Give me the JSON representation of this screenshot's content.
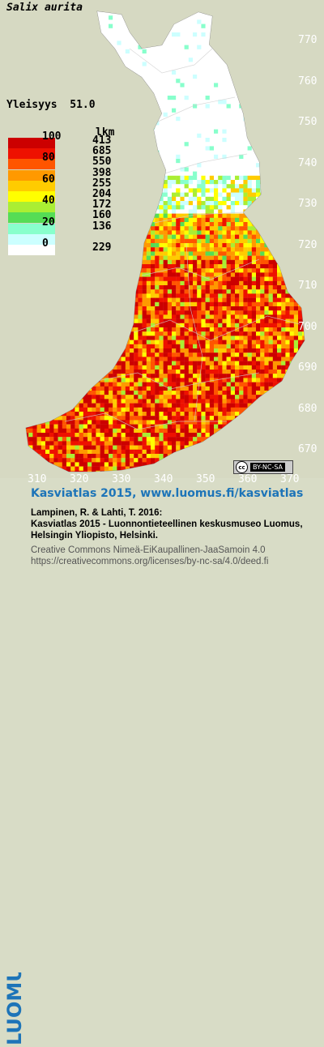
{
  "map": {
    "species": "Salix aurita",
    "frequency_label": "Yleisyys",
    "frequency_value": "51.0",
    "legend_header": "lkm",
    "legend": [
      {
        "label": "100",
        "count": "413",
        "color": "#cc0000"
      },
      {
        "label": "",
        "count": "685",
        "color": "#ee1100"
      },
      {
        "label": "80",
        "count": "550",
        "color": "#ff5500"
      },
      {
        "label": "",
        "count": "398",
        "color": "#ff9900"
      },
      {
        "label": "60",
        "count": "255",
        "color": "#ffcc00"
      },
      {
        "label": "",
        "count": "204",
        "color": "#ffff00"
      },
      {
        "label": "40",
        "count": "172",
        "color": "#aaee33"
      },
      {
        "label": "",
        "count": "160",
        "color": "#55dd55"
      },
      {
        "label": "20",
        "count": "136",
        "color": "#88ffcc"
      },
      {
        "label": "",
        "count": "",
        "color": "#ccffff"
      },
      {
        "label": "0",
        "count": "229",
        "color": "#ffffff"
      }
    ],
    "y_ticks": [
      "770",
      "760",
      "750",
      "740",
      "730",
      "720",
      "710",
      "700",
      "690",
      "680",
      "670"
    ],
    "x_ticks": [
      "310",
      "320",
      "330",
      "340",
      "350",
      "360",
      "370"
    ],
    "license_badge": "BY-NC-SA",
    "license_badge_cc": "cc"
  },
  "footer": {
    "logo_text": "LUOMUS",
    "title": "Kasviatlas 2015, www.luomus.fi/kasviatlas",
    "citation_1": "Lampinen, R. & Lahti, T. 2016:",
    "citation_2": "Kasviatlas 2015 - Luonnontieteellinen keskusmuseo Luomus,",
    "citation_3": "Helsingin Yliopisto, Helsinki.",
    "license_1": "Creative Commons Nimeä-EiKaupallinen-JaaSamoin 4.0",
    "license_2": "https://creativecommons.org/licenses/by-nc-sa/4.0/deed.fi"
  }
}
